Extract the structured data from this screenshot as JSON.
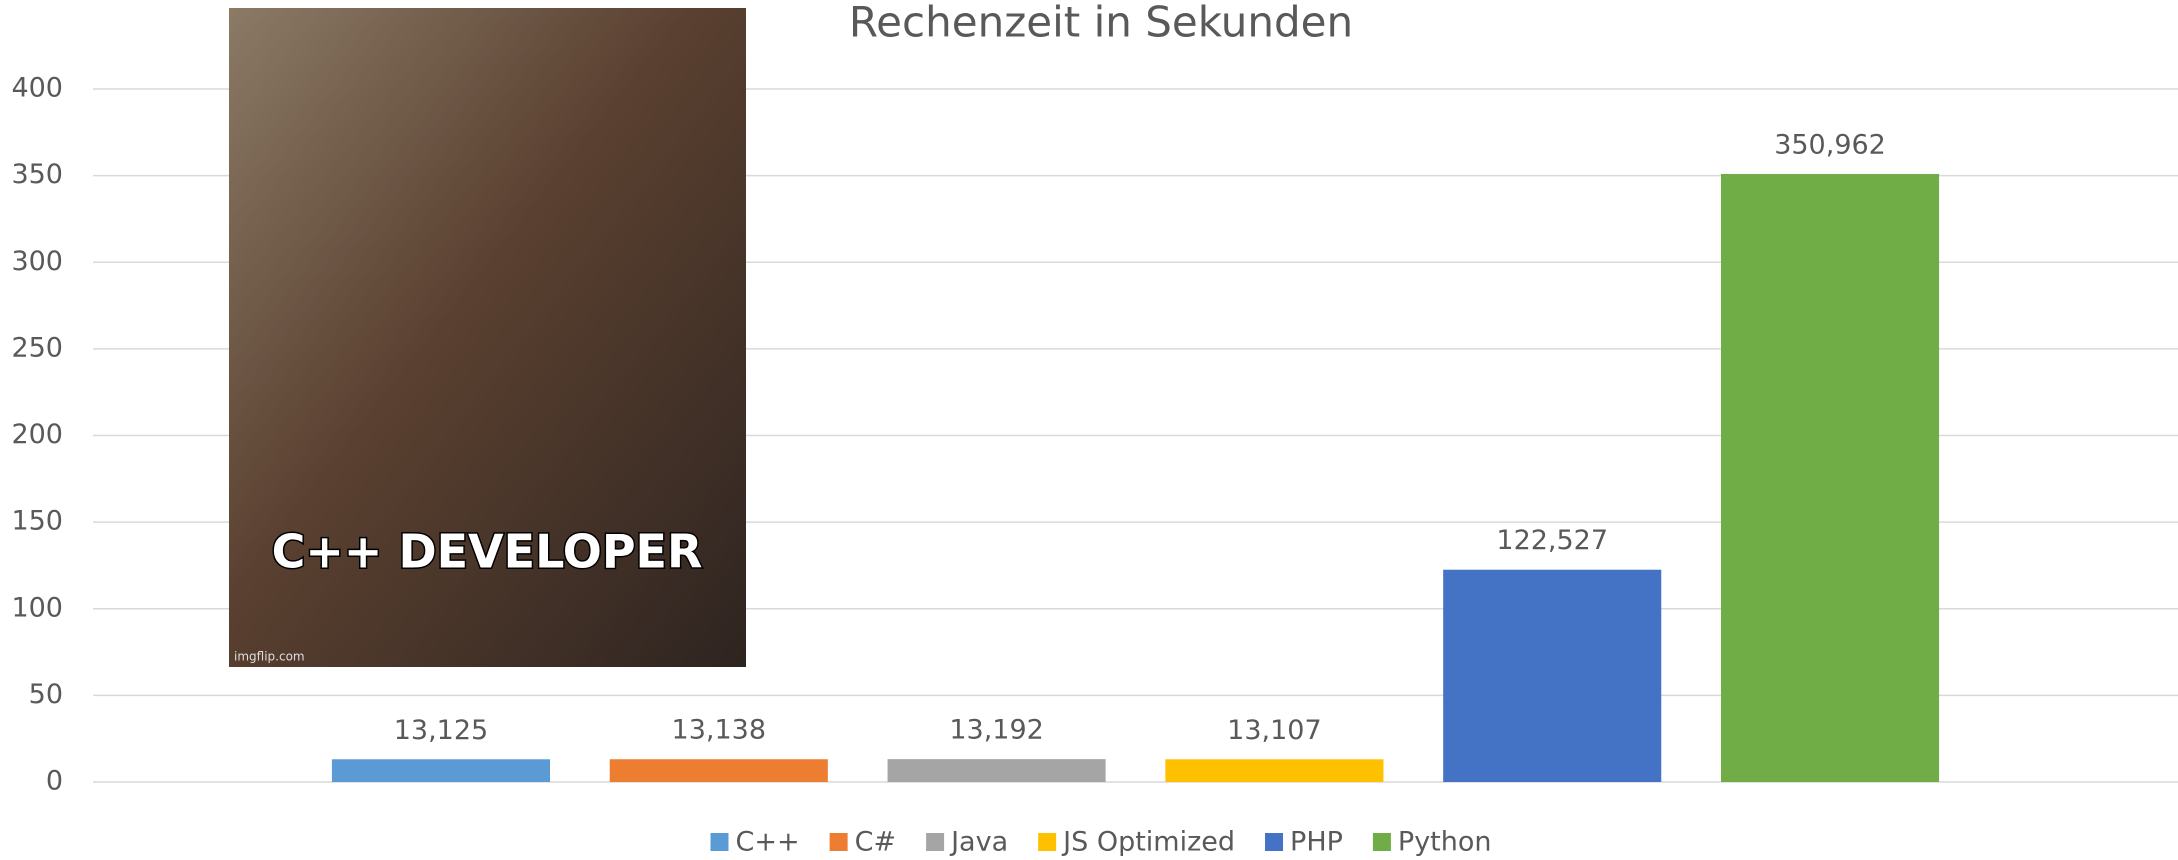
{
  "chart_data": {
    "type": "bar",
    "title": "Rechenzeit in Sekunden",
    "categories": [
      null
    ],
    "series": [
      {
        "name": "C++",
        "color": "#5b9bd5",
        "values": [
          13.125
        ],
        "value_labels": [
          "13,125"
        ]
      },
      {
        "name": "C#",
        "color": "#ed7d31",
        "values": [
          13.138
        ],
        "value_labels": [
          "13,138"
        ]
      },
      {
        "name": "Java",
        "color": "#a5a5a5",
        "values": [
          13.192
        ],
        "value_labels": [
          "13,192"
        ]
      },
      {
        "name": "JS Optimized",
        "color": "#ffc000",
        "values": [
          13.107
        ],
        "value_labels": [
          "13,107"
        ]
      },
      {
        "name": "PHP",
        "color": "#4472c4",
        "values": [
          122.527
        ],
        "value_labels": [
          "122,527"
        ]
      },
      {
        "name": "Python",
        "color": "#70ad47",
        "values": [
          350.962
        ],
        "value_labels": [
          "350,962"
        ]
      }
    ],
    "ylim": [
      0,
      400
    ],
    "yticks": [
      0,
      50,
      100,
      150,
      200,
      250,
      300,
      350,
      400
    ],
    "grid": true,
    "legend": "bottom"
  },
  "meme": {
    "caption": "C++ DEVELOPER",
    "watermark": "imgflip.com"
  }
}
